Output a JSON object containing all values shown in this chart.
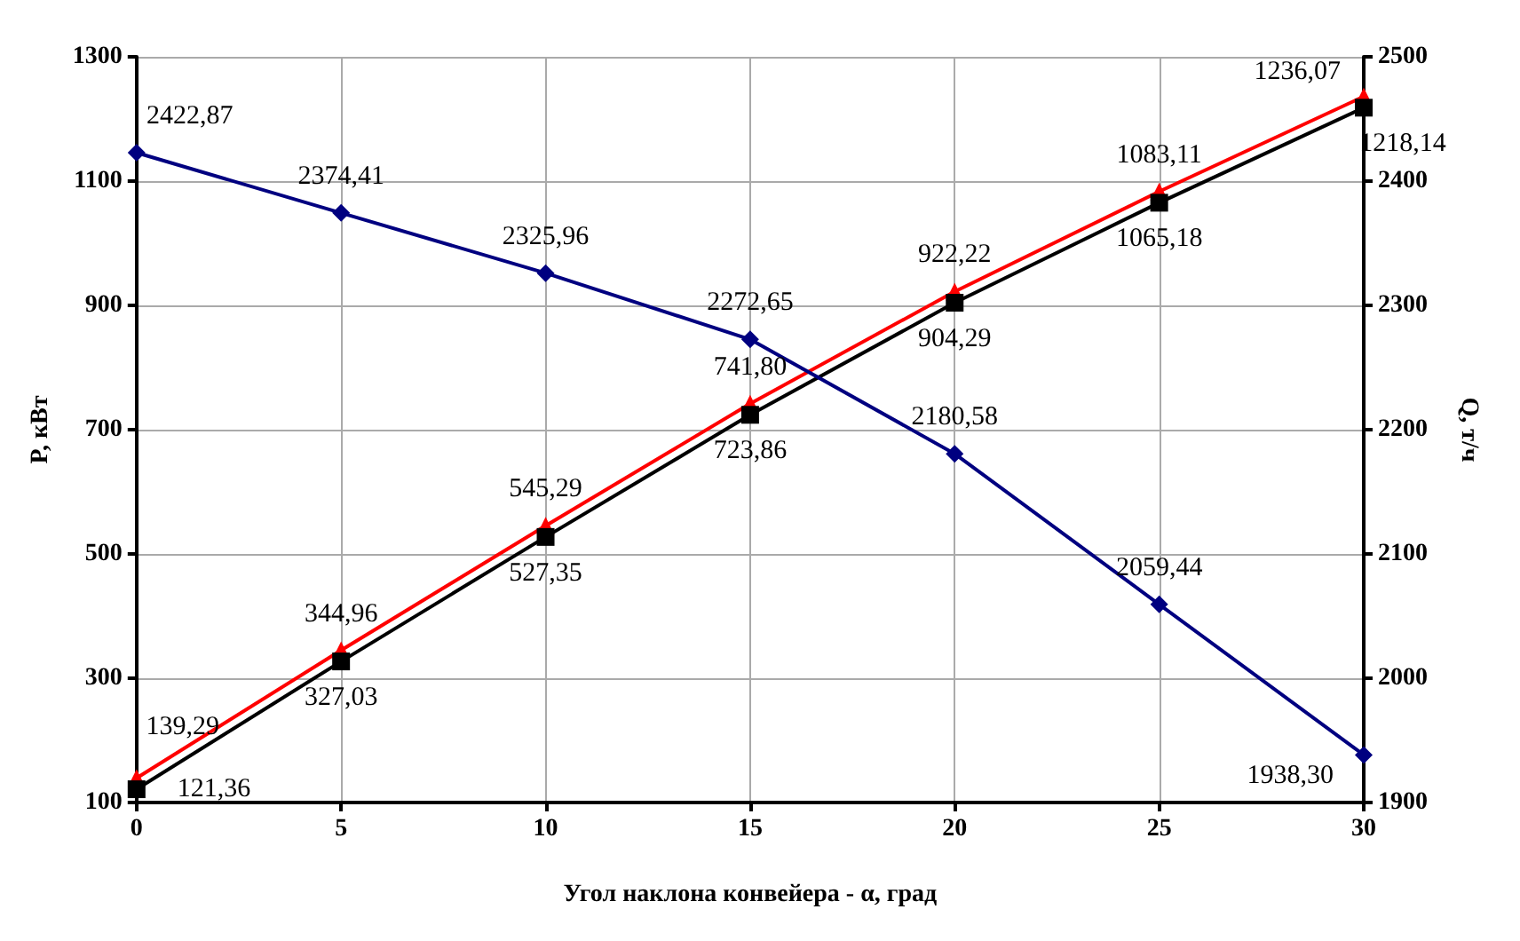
{
  "chart_data": {
    "type": "line",
    "xlabel": "Угол наклона конвейера - α, град",
    "ylabel": "P, кВт",
    "y2label": "Q, т/ч",
    "x": [
      0,
      5,
      10,
      15,
      20,
      25,
      30
    ],
    "series": [
      {
        "color": "#ff0000",
        "marker": "triangle",
        "values": [
          139.29,
          344.96,
          545.29,
          741.8,
          922.22,
          1083.11,
          1236.07
        ],
        "value_labels": [
          "139,29",
          "344,96",
          "545,29",
          "741,80",
          "922,22",
          "1083,11",
          "1236,07"
        ]
      },
      {
        "color": "#000000",
        "marker": "square",
        "values": [
          121.36,
          327.03,
          527.35,
          723.86,
          904.29,
          1065.18,
          1218.14
        ],
        "value_labels": [
          "121,36",
          "327,03",
          "527,35",
          "723,86",
          "904,29",
          "1065,18",
          "1218,14"
        ]
      },
      {
        "color": "#000080",
        "marker": "diamond",
        "axis": "y2",
        "values": [
          2422.87,
          2374.41,
          2325.96,
          2272.65,
          2180.58,
          2059.44,
          1938.3
        ],
        "value_labels": [
          "2422,87",
          "2374,41",
          "2325,96",
          "2272,65",
          "2180,58",
          "2059,44",
          "1938,30"
        ]
      }
    ],
    "xlim": [
      0,
      30
    ],
    "xticks": [
      0,
      5,
      10,
      15,
      20,
      25,
      30
    ],
    "ylim": [
      100,
      1300
    ],
    "yticks": [
      100,
      300,
      500,
      700,
      900,
      1100,
      1300
    ],
    "y2lim": [
      1900,
      2500
    ],
    "y2ticks": [
      1900,
      2000,
      2100,
      2200,
      2300,
      2400,
      2500
    ],
    "grid": true,
    "line_style": "solid"
  }
}
